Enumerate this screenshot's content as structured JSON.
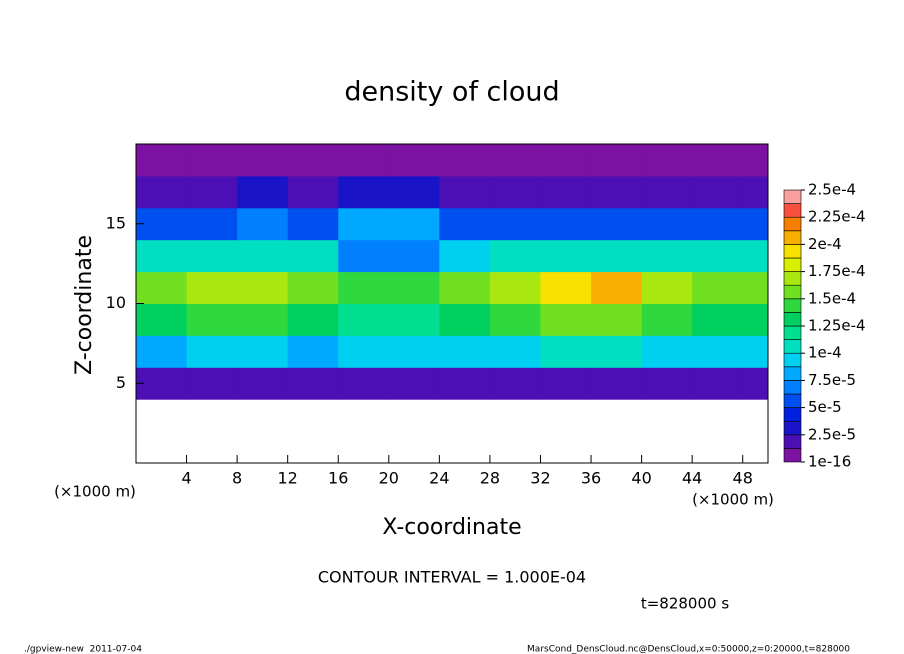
{
  "chart_data": {
    "type": "heatmap",
    "title": "density of cloud",
    "x_label": "X-coordinate",
    "y_label": "Z-coordinate",
    "x_unit": "(×1000 m)",
    "x_unit_right": "(×1000 m)",
    "x": [
      0,
      4,
      8,
      12,
      16,
      20,
      24,
      28,
      32,
      36,
      40,
      44,
      48,
      50
    ],
    "y": [
      0,
      2,
      4,
      6,
      8,
      10,
      12,
      14,
      16,
      18,
      20
    ],
    "values": [
      [
        null,
        null,
        null,
        null,
        null,
        null,
        null,
        null,
        null,
        null,
        null,
        null,
        null
      ],
      [
        null,
        null,
        null,
        null,
        null,
        null,
        null,
        null,
        null,
        null,
        null,
        null,
        null
      ],
      [
        2e-05,
        2e-05,
        2e-05,
        2e-05,
        2e-05,
        2e-05,
        2e-05,
        2e-05,
        2e-05,
        2e-05,
        2e-05,
        2e-05,
        2e-05
      ],
      [
        8e-05,
        9e-05,
        9e-05,
        8e-05,
        9e-05,
        9e-05,
        9e-05,
        9e-05,
        0.0001,
        0.0001,
        9e-05,
        9e-05,
        9e-05
      ],
      [
        0.00013,
        0.00014,
        0.00014,
        0.00013,
        0.00012,
        0.00012,
        0.00013,
        0.00014,
        0.00015,
        0.00015,
        0.00014,
        0.00013,
        0.00013
      ],
      [
        0.00015,
        0.00017,
        0.00017,
        0.00015,
        0.00014,
        0.00014,
        0.00015,
        0.00017,
        0.00019,
        0.0002,
        0.00017,
        0.00015,
        0.00015
      ],
      [
        0.00011,
        0.00011,
        0.00011,
        0.0001,
        7e-05,
        7e-05,
        9e-05,
        0.0001,
        0.00011,
        0.00011,
        0.0001,
        0.0001,
        0.0001
      ],
      [
        6e-05,
        6e-05,
        7e-05,
        6e-05,
        8e-05,
        8e-05,
        6e-05,
        5e-05,
        5e-05,
        5e-05,
        5e-05,
        5e-05,
        5e-05
      ],
      [
        2e-05,
        2e-05,
        3e-05,
        2e-05,
        3e-05,
        3e-05,
        2e-05,
        2e-05,
        2e-05,
        2e-05,
        2e-05,
        2e-05,
        2e-05
      ],
      [
        5e-06,
        5e-06,
        5e-06,
        5e-06,
        5e-06,
        5e-06,
        5e-06,
        5e-06,
        5e-06,
        5e-06,
        5e-06,
        5e-06,
        5e-06
      ]
    ],
    "xlim": [
      0,
      50
    ],
    "ylim": [
      0,
      20
    ],
    "xticks": [
      4,
      8,
      12,
      16,
      20,
      24,
      28,
      32,
      36,
      40,
      44,
      48
    ],
    "yticks": [
      5,
      10,
      15
    ],
    "colorbar": {
      "ticks": [
        {
          "value": 1e-16,
          "label": "1e-16"
        },
        {
          "value": 2.5e-05,
          "label": "2.5e-5"
        },
        {
          "value": 5e-05,
          "label": "5e-5"
        },
        {
          "value": 7.5e-05,
          "label": "7.5e-5"
        },
        {
          "value": 0.0001,
          "label": "1e-4"
        },
        {
          "value": 0.000125,
          "label": "1.25e-4"
        },
        {
          "value": 0.00015,
          "label": "1.5e-4"
        },
        {
          "value": 0.000175,
          "label": "1.75e-4"
        },
        {
          "value": 0.0002,
          "label": "2e-4"
        },
        {
          "value": 0.000225,
          "label": "2.25e-4"
        },
        {
          "value": 0.00025,
          "label": "2.5e-4"
        }
      ],
      "colors": [
        "#7b12a1",
        "#4b0fb5",
        "#1a14c8",
        "#0020e0",
        "#0050f0",
        "#0080ff",
        "#00a8ff",
        "#00d0f0",
        "#00e0c0",
        "#00e090",
        "#00d060",
        "#30d840",
        "#70e020",
        "#a8e810",
        "#d8f000",
        "#f8e000",
        "#f8b000",
        "#f88000",
        "#f85040",
        "#f8a0a0"
      ]
    },
    "annotations": [
      "CONTOUR INTERVAL = 1.000E-04",
      "t=828000 s"
    ],
    "footer_left": "./gpview-new  2011-07-04",
    "footer_right": "MarsCond_DensCloud.nc@DensCloud,x=0:50000,z=0:20000,t=828000"
  }
}
